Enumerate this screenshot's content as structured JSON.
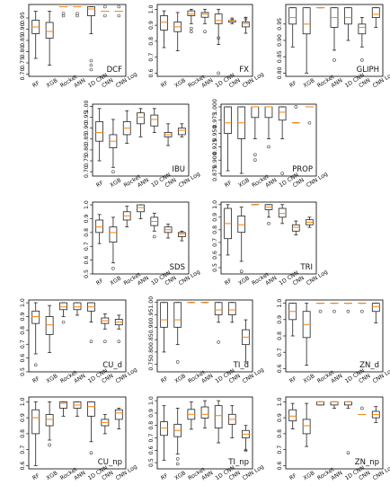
{
  "figure": {
    "categories": [
      "RF",
      "XGB",
      "Rocket",
      "ANN",
      "1D CNN",
      "CNN",
      "CNN Log"
    ],
    "colors": {
      "median": "#ff8c1a",
      "box": "#222222",
      "flier": "#444444"
    }
  },
  "chart_data": [
    {
      "type": "box",
      "title": "DCF",
      "ylim": [
        0.69,
        1.01
      ],
      "ticks": [
        0.7,
        0.75,
        0.8,
        0.85,
        0.9,
        0.95
      ],
      "boxes": [
        {
          "min": 0.77,
          "q1": 0.88,
          "med": 0.91,
          "q3": 0.94,
          "max": 0.98,
          "fliers": []
        },
        {
          "min": 0.74,
          "q1": 0.86,
          "med": 0.89,
          "q3": 0.93,
          "max": 0.98,
          "fliers": []
        },
        {
          "min": 1.0,
          "q1": 1.0,
          "med": 1.0,
          "q3": 1.0,
          "max": 1.0,
          "fliers": [
            0.97,
            0.96
          ]
        },
        {
          "min": 1.0,
          "q1": 1.0,
          "med": 1.0,
          "q3": 1.0,
          "max": 1.0,
          "fliers": [
            0.97,
            0.96
          ]
        },
        {
          "min": 0.88,
          "q1": 0.96,
          "med": 0.99,
          "q3": 1.0,
          "max": 1.0,
          "fliers": [
            0.76,
            0.74,
            0.72
          ]
        },
        {
          "min": 0.98,
          "q1": 0.98,
          "med": 0.98,
          "q3": 0.98,
          "max": 0.98,
          "fliers": [
            1.0,
            0.96
          ]
        },
        {
          "min": 0.98,
          "q1": 0.98,
          "med": 0.98,
          "q3": 0.98,
          "max": 0.98,
          "fliers": [
            1.0,
            0.96
          ]
        }
      ]
    },
    {
      "type": "box",
      "title": "FX",
      "ylim": [
        0.58,
        1.03
      ],
      "ticks": [
        0.6,
        0.7,
        0.8,
        0.9,
        1.0
      ],
      "boxes": [
        {
          "min": 0.76,
          "q1": 0.87,
          "med": 0.92,
          "q3": 0.96,
          "max": 0.99,
          "fliers": []
        },
        {
          "min": 0.74,
          "q1": 0.86,
          "med": 0.89,
          "q3": 0.92,
          "max": 0.98,
          "fliers": []
        },
        {
          "min": 0.91,
          "q1": 0.96,
          "med": 0.97,
          "q3": 0.99,
          "max": 1.0,
          "fliers": [
            0.86,
            0.88
          ]
        },
        {
          "min": 0.91,
          "q1": 0.95,
          "med": 0.97,
          "q3": 0.98,
          "max": 1.0,
          "fliers": [
            0.86
          ]
        },
        {
          "min": 0.78,
          "q1": 0.91,
          "med": 0.93,
          "q3": 0.97,
          "max": 1.0,
          "fliers": [
            0.6,
            0.82
          ]
        },
        {
          "min": 0.91,
          "q1": 0.92,
          "med": 0.93,
          "q3": 0.93,
          "max": 0.94,
          "fliers": [
            0.94
          ]
        },
        {
          "min": 0.85,
          "q1": 0.89,
          "med": 0.91,
          "q3": 0.92,
          "max": 0.95,
          "fliers": [
            0.94
          ]
        }
      ]
    },
    {
      "type": "box",
      "title": "GLIPH",
      "ylim": [
        0.79,
        1.01
      ],
      "ticks": [
        0.8,
        0.85,
        0.9,
        0.95
      ],
      "boxes": [
        {
          "min": 0.88,
          "q1": 0.95,
          "med": 0.97,
          "q3": 1.0,
          "max": 1.0,
          "fliers": []
        },
        {
          "min": 0.8,
          "q1": 0.92,
          "med": 0.95,
          "q3": 1.0,
          "max": 1.0,
          "fliers": []
        },
        {
          "min": 1.0,
          "q1": 1.0,
          "med": 1.0,
          "q3": 1.0,
          "max": 1.0,
          "fliers": []
        },
        {
          "min": 0.87,
          "q1": 0.94,
          "med": 0.97,
          "q3": 1.0,
          "max": 1.0,
          "fliers": [
            0.84
          ]
        },
        {
          "min": 0.9,
          "q1": 0.95,
          "med": 0.97,
          "q3": 1.0,
          "max": 1.0,
          "fliers": []
        },
        {
          "min": 0.88,
          "q1": 0.92,
          "med": 0.94,
          "q3": 0.95,
          "max": 0.97,
          "fliers": [
            0.84
          ]
        },
        {
          "min": 0.94,
          "q1": 0.97,
          "med": 0.98,
          "q3": 1.0,
          "max": 1.0,
          "fliers": []
        }
      ]
    },
    {
      "type": "box",
      "title": "IBU",
      "ylim": [
        0.68,
        1.01
      ],
      "ticks": [
        0.7,
        0.75,
        0.8,
        0.85,
        0.9,
        0.95,
        1.0
      ],
      "boxes": [
        {
          "min": 0.75,
          "q1": 0.84,
          "med": 0.88,
          "q3": 0.93,
          "max": 0.99,
          "fliers": []
        },
        {
          "min": 0.72,
          "q1": 0.81,
          "med": 0.84,
          "q3": 0.87,
          "max": 0.94,
          "fliers": [
            0.7
          ]
        },
        {
          "min": 0.83,
          "q1": 0.87,
          "med": 0.9,
          "q3": 0.93,
          "max": 0.98,
          "fliers": []
        },
        {
          "min": 0.86,
          "q1": 0.92,
          "med": 0.95,
          "q3": 0.97,
          "max": 0.99,
          "fliers": []
        },
        {
          "min": 0.88,
          "q1": 0.91,
          "med": 0.94,
          "q3": 0.96,
          "max": 0.99,
          "fliers": []
        },
        {
          "min": 0.82,
          "q1": 0.86,
          "med": 0.87,
          "q3": 0.88,
          "max": 0.92,
          "fliers": []
        },
        {
          "min": 0.86,
          "q1": 0.87,
          "med": 0.89,
          "q3": 0.9,
          "max": 0.92,
          "fliers": []
        }
      ]
    },
    {
      "type": "box",
      "title": "PROP",
      "ylim": [
        0.87,
        1.005
      ],
      "ticks": [
        0.875,
        0.9,
        0.925,
        0.95,
        0.975,
        1.0
      ],
      "boxes": [
        {
          "min": 0.88,
          "q1": 0.95,
          "med": 0.97,
          "q3": 1.0,
          "max": 1.0,
          "fliers": []
        },
        {
          "min": 0.875,
          "q1": 0.94,
          "med": 0.97,
          "q3": 1.0,
          "max": 1.0,
          "fliers": []
        },
        {
          "min": 0.94,
          "q1": 0.98,
          "med": 1.0,
          "q3": 1.0,
          "max": 1.0,
          "fliers": [
            0.91,
            0.9
          ]
        },
        {
          "min": 0.94,
          "q1": 0.98,
          "med": 1.0,
          "q3": 1.0,
          "max": 1.0,
          "fliers": [
            0.925
          ]
        },
        {
          "min": 0.94,
          "q1": 0.975,
          "med": 0.99,
          "q3": 1.0,
          "max": 1.0,
          "fliers": [
            0.875
          ]
        },
        {
          "min": 0.97,
          "q1": 0.97,
          "med": 0.97,
          "q3": 0.97,
          "max": 0.97,
          "fliers": [
            1.0
          ]
        },
        {
          "min": 1.0,
          "q1": 1.0,
          "med": 1.0,
          "q3": 1.0,
          "max": 1.0,
          "fliers": [
            0.97
          ]
        }
      ]
    },
    {
      "type": "box",
      "title": "SDS",
      "ylim": [
        0.5,
        1.02
      ],
      "ticks": [
        0.5,
        0.6,
        0.7,
        0.8,
        0.9,
        1.0
      ],
      "boxes": [
        {
          "min": 0.72,
          "q1": 0.8,
          "med": 0.84,
          "q3": 0.89,
          "max": 0.93,
          "fliers": []
        },
        {
          "min": 0.58,
          "q1": 0.73,
          "med": 0.8,
          "q3": 0.84,
          "max": 0.91,
          "fliers": [
            0.54
          ]
        },
        {
          "min": 0.84,
          "q1": 0.89,
          "med": 0.92,
          "q3": 0.95,
          "max": 0.99,
          "fliers": []
        },
        {
          "min": 0.9,
          "q1": 0.95,
          "med": 0.98,
          "q3": 1.0,
          "max": 1.0,
          "fliers": []
        },
        {
          "min": 0.81,
          "q1": 0.85,
          "med": 0.88,
          "q3": 0.91,
          "max": 0.94,
          "fliers": [
            0.77
          ]
        },
        {
          "min": 0.76,
          "q1": 0.8,
          "med": 0.82,
          "q3": 0.84,
          "max": 0.86,
          "fliers": []
        },
        {
          "min": 0.74,
          "q1": 0.77,
          "med": 0.79,
          "q3": 0.8,
          "max": 0.81,
          "fliers": []
        }
      ]
    },
    {
      "type": "box",
      "title": "TRI",
      "ylim": [
        0.45,
        1.02
      ],
      "ticks": [
        0.5,
        0.6,
        0.7,
        0.8,
        0.9,
        1.0
      ],
      "boxes": [
        {
          "min": 0.6,
          "q1": 0.73,
          "med": 0.85,
          "q3": 0.97,
          "max": 1.0,
          "fliers": []
        },
        {
          "min": 0.55,
          "q1": 0.78,
          "med": 0.84,
          "q3": 0.91,
          "max": 0.98,
          "fliers": [
            0.47
          ]
        },
        {
          "min": 1.0,
          "q1": 1.0,
          "med": 1.0,
          "q3": 1.0,
          "max": 1.0,
          "fliers": []
        },
        {
          "min": 0.9,
          "q1": 0.96,
          "med": 0.98,
          "q3": 1.0,
          "max": 1.0,
          "fliers": [
            0.85
          ]
        },
        {
          "min": 0.85,
          "q1": 0.9,
          "med": 0.93,
          "q3": 0.97,
          "max": 1.0,
          "fliers": []
        },
        {
          "min": 0.76,
          "q1": 0.79,
          "med": 0.82,
          "q3": 0.84,
          "max": 0.87,
          "fliers": []
        },
        {
          "min": 0.82,
          "q1": 0.84,
          "med": 0.86,
          "q3": 0.88,
          "max": 0.9,
          "fliers": []
        }
      ]
    },
    {
      "type": "box",
      "title": "CU_d",
      "ylim": [
        0.5,
        1.02
      ],
      "ticks": [
        0.5,
        0.6,
        0.7,
        0.8,
        0.9,
        1.0
      ],
      "boxes": [
        {
          "min": 0.63,
          "q1": 0.85,
          "med": 0.9,
          "q3": 0.94,
          "max": 1.0,
          "fliers": [
            0.55
          ]
        },
        {
          "min": 0.64,
          "q1": 0.77,
          "med": 0.84,
          "q3": 0.9,
          "max": 0.98,
          "fliers": []
        },
        {
          "min": 0.9,
          "q1": 0.95,
          "med": 0.97,
          "q3": 1.0,
          "max": 1.0,
          "fliers": [
            0.86
          ]
        },
        {
          "min": 0.91,
          "q1": 0.95,
          "med": 0.97,
          "q3": 1.0,
          "max": 1.0,
          "fliers": []
        },
        {
          "min": 0.86,
          "q1": 0.94,
          "med": 0.97,
          "q3": 1.0,
          "max": 1.0,
          "fliers": [
            0.72
          ]
        },
        {
          "min": 0.81,
          "q1": 0.85,
          "med": 0.87,
          "q3": 0.89,
          "max": 0.92,
          "fliers": [
            0.72
          ]
        },
        {
          "min": 0.81,
          "q1": 0.84,
          "med": 0.86,
          "q3": 0.88,
          "max": 0.91,
          "fliers": [
            0.72
          ]
        }
      ]
    },
    {
      "type": "box",
      "title": "TI_d",
      "ylim": [
        0.72,
        1.01
      ],
      "ticks": [
        0.75,
        0.8,
        0.85,
        0.9,
        0.95,
        1.0
      ],
      "boxes": [
        {
          "min": 0.8,
          "q1": 0.9,
          "med": 0.93,
          "q3": 1.0,
          "max": 1.0,
          "fliers": []
        },
        {
          "min": 0.83,
          "q1": 0.9,
          "med": 0.93,
          "q3": 1.0,
          "max": 1.0,
          "fliers": [
            0.76
          ]
        },
        {
          "min": 1.0,
          "q1": 1.0,
          "med": 1.0,
          "q3": 1.0,
          "max": 1.0,
          "fliers": []
        },
        {
          "min": 1.0,
          "q1": 1.0,
          "med": 1.0,
          "q3": 1.0,
          "max": 1.0,
          "fliers": []
        },
        {
          "min": 0.92,
          "q1": 0.95,
          "med": 0.97,
          "q3": 1.0,
          "max": 1.0,
          "fliers": [
            0.84
          ]
        },
        {
          "min": 0.92,
          "q1": 0.95,
          "med": 0.97,
          "q3": 1.0,
          "max": 1.0,
          "fliers": []
        },
        {
          "min": 0.76,
          "q1": 0.83,
          "med": 0.86,
          "q3": 0.89,
          "max": 0.93,
          "fliers": []
        }
      ]
    },
    {
      "type": "box",
      "title": "ZN_d",
      "ylim": [
        0.58,
        1.02
      ],
      "ticks": [
        0.6,
        0.7,
        0.8,
        0.9,
        1.0
      ],
      "boxes": [
        {
          "min": 0.8,
          "q1": 0.9,
          "med": 0.95,
          "q3": 1.0,
          "max": 1.0,
          "fliers": []
        },
        {
          "min": 0.62,
          "q1": 0.79,
          "med": 0.87,
          "q3": 0.95,
          "max": 1.0,
          "fliers": []
        },
        {
          "min": 1.0,
          "q1": 1.0,
          "med": 1.0,
          "q3": 1.0,
          "max": 1.0,
          "fliers": [
            0.95
          ]
        },
        {
          "min": 1.0,
          "q1": 1.0,
          "med": 1.0,
          "q3": 1.0,
          "max": 1.0,
          "fliers": [
            0.95
          ]
        },
        {
          "min": 1.0,
          "q1": 1.0,
          "med": 1.0,
          "q3": 1.0,
          "max": 1.0,
          "fliers": [
            0.95
          ]
        },
        {
          "min": 1.0,
          "q1": 1.0,
          "med": 1.0,
          "q3": 1.0,
          "max": 1.0,
          "fliers": [
            0.95
          ]
        },
        {
          "min": 0.88,
          "q1": 0.95,
          "med": 0.98,
          "q3": 1.0,
          "max": 1.0,
          "fliers": []
        }
      ]
    },
    {
      "type": "box",
      "title": "CU_np",
      "ylim": [
        0.58,
        1.03
      ],
      "ticks": [
        0.6,
        0.7,
        0.8,
        0.9,
        1.0
      ],
      "boxes": [
        {
          "min": 0.6,
          "q1": 0.8,
          "med": 0.9,
          "q3": 0.95,
          "max": 1.0,
          "fliers": []
        },
        {
          "min": 0.76,
          "q1": 0.85,
          "med": 0.89,
          "q3": 0.92,
          "max": 1.0,
          "fliers": [
            0.73
          ]
        },
        {
          "min": 0.91,
          "q1": 0.96,
          "med": 0.99,
          "q3": 1.0,
          "max": 1.0,
          "fliers": []
        },
        {
          "min": 0.91,
          "q1": 0.96,
          "med": 0.98,
          "q3": 1.0,
          "max": 1.0,
          "fliers": []
        },
        {
          "min": 0.75,
          "q1": 0.91,
          "med": 0.97,
          "q3": 1.0,
          "max": 1.0,
          "fliers": [
            0.68
          ]
        },
        {
          "min": 0.8,
          "q1": 0.85,
          "med": 0.87,
          "q3": 0.89,
          "max": 0.92,
          "fliers": []
        },
        {
          "min": 0.83,
          "q1": 0.89,
          "med": 0.93,
          "q3": 0.95,
          "max": 0.96,
          "fliers": []
        }
      ]
    },
    {
      "type": "box",
      "title": "TI_np",
      "ylim": [
        0.45,
        1.03
      ],
      "ticks": [
        0.5,
        0.6,
        0.7,
        0.8,
        0.9,
        1.0
      ],
      "boxes": [
        {
          "min": 0.52,
          "q1": 0.72,
          "med": 0.78,
          "q3": 0.83,
          "max": 0.96,
          "fliers": []
        },
        {
          "min": 0.57,
          "q1": 0.71,
          "med": 0.76,
          "q3": 0.81,
          "max": 0.94,
          "fliers": [
            0.49,
            0.53
          ]
        },
        {
          "min": 0.77,
          "q1": 0.85,
          "med": 0.89,
          "q3": 0.93,
          "max": 0.99,
          "fliers": []
        },
        {
          "min": 0.78,
          "q1": 0.86,
          "med": 0.89,
          "q3": 0.95,
          "max": 1.0,
          "fliers": []
        },
        {
          "min": 0.66,
          "q1": 0.78,
          "med": 0.88,
          "q3": 0.96,
          "max": 1.0,
          "fliers": []
        },
        {
          "min": 0.7,
          "q1": 0.81,
          "med": 0.85,
          "q3": 0.89,
          "max": 0.96,
          "fliers": []
        },
        {
          "min": 0.6,
          "q1": 0.7,
          "med": 0.73,
          "q3": 0.76,
          "max": 0.8,
          "fliers": [
            0.6
          ]
        }
      ]
    },
    {
      "type": "box",
      "title": "ZN_np",
      "ylim": [
        0.58,
        1.03
      ],
      "ticks": [
        0.6,
        0.7,
        0.8,
        0.9,
        1.0
      ],
      "boxes": [
        {
          "min": 0.83,
          "q1": 0.88,
          "med": 0.91,
          "q3": 0.95,
          "max": 0.99,
          "fliers": []
        },
        {
          "min": 0.72,
          "q1": 0.8,
          "med": 0.85,
          "q3": 0.89,
          "max": 0.99,
          "fliers": []
        },
        {
          "min": 0.98,
          "q1": 0.98,
          "med": 1.0,
          "q3": 1.0,
          "max": 1.0,
          "fliers": []
        },
        {
          "min": 0.96,
          "q1": 0.98,
          "med": 1.0,
          "q3": 1.0,
          "max": 1.0,
          "fliers": []
        },
        {
          "min": 0.96,
          "q1": 0.98,
          "med": 1.0,
          "q3": 1.0,
          "max": 1.0,
          "fliers": [
            0.68
          ]
        },
        {
          "min": 0.92,
          "q1": 0.92,
          "med": 0.92,
          "q3": 0.92,
          "max": 0.92,
          "fliers": [
            0.96
          ]
        },
        {
          "min": 0.87,
          "q1": 0.9,
          "med": 0.92,
          "q3": 0.94,
          "max": 0.97,
          "fliers": []
        }
      ]
    }
  ]
}
